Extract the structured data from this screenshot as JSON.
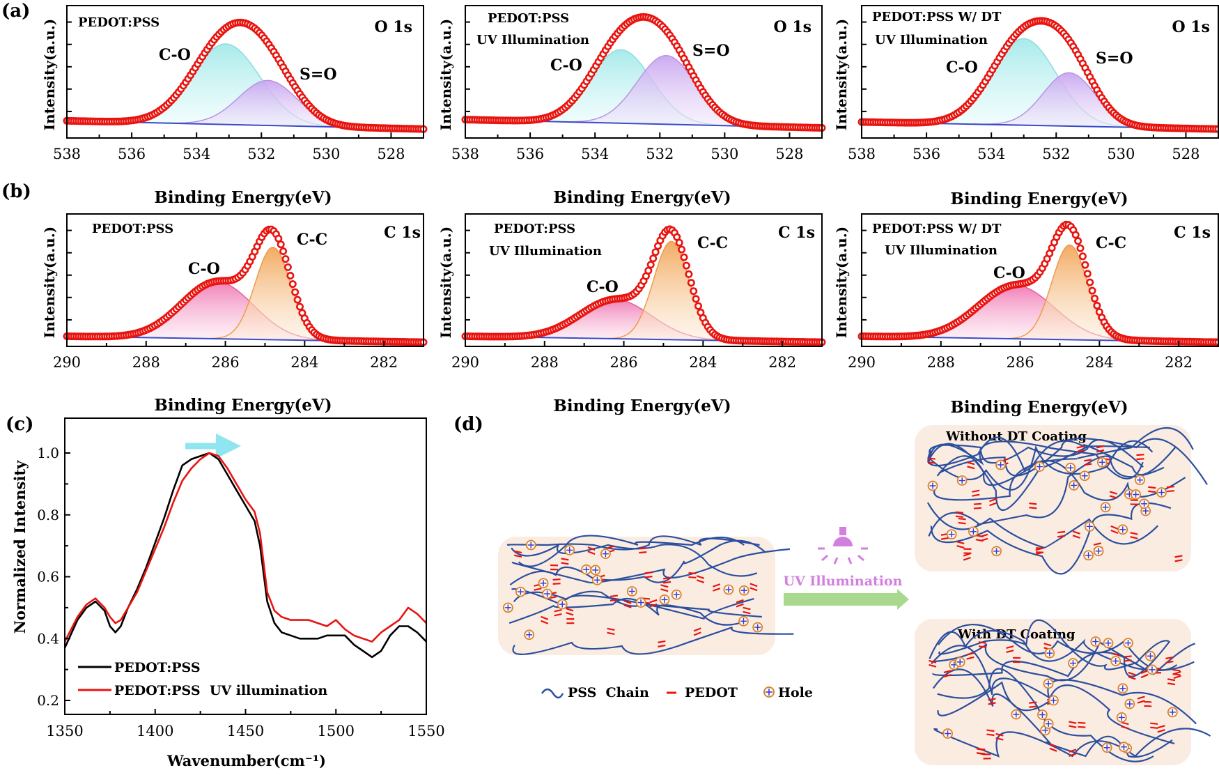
{
  "panel_labels": {
    "a": "(a)",
    "b": "(b)",
    "c": "(c)",
    "d": "(d)"
  },
  "colors": {
    "data_red": "#e8140f",
    "baseline": "#3a4bc8",
    "c_o_peak": "#9fe8e8",
    "s_o_peak": "#c9a6f0",
    "c_o_peak_c1s": "#f07ab4",
    "c_c_peak": "#f2a65a",
    "black_line": "#000000",
    "red_line": "#e8140f",
    "arrow_cyan": "#8fe6f0",
    "chain_blue": "#2a4f9e",
    "pedot_red": "#e8140f",
    "hole_orange": "#d9822b",
    "hole_blue": "#3a3ad0",
    "uv_purple": "#d27fe0",
    "green_arrow": "#a8d98f",
    "box_bg": "#fbece2"
  },
  "chart_data": [
    {
      "id": "a1",
      "type": "line",
      "title": "PEDOT:PSS",
      "corner_label": "O 1s",
      "xlabel": "Binding Energy(eV)",
      "ylabel": "Intensity(a.u.)",
      "xlim": [
        538,
        527
      ],
      "xticks": [
        538,
        536,
        534,
        532,
        530,
        528
      ],
      "ylim": [
        0,
        1
      ],
      "baseline": [
        0.11,
        0.04
      ],
      "components": [
        {
          "name": "C-O",
          "center": 533.1,
          "width": 1.05,
          "height": 0.68
        },
        {
          "name": "S=O",
          "center": 531.8,
          "width": 0.9,
          "height": 0.38
        }
      ]
    },
    {
      "id": "a2",
      "type": "line",
      "title": "PEDOT:PSS",
      "subtitle": "UV Illumination",
      "corner_label": "O 1s",
      "xlabel": "Binding Energy(eV)",
      "ylabel": "Intensity(a.u.)",
      "xlim": [
        538,
        527
      ],
      "xticks": [
        538,
        536,
        534,
        532,
        530,
        528
      ],
      "ylim": [
        0,
        1
      ],
      "baseline": [
        0.12,
        0.05
      ],
      "components": [
        {
          "name": "C-O",
          "center": 533.2,
          "width": 0.95,
          "height": 0.62
        },
        {
          "name": "S=O",
          "center": 531.8,
          "width": 0.9,
          "height": 0.58
        }
      ]
    },
    {
      "id": "a3",
      "type": "line",
      "title": "PEDOT:PSS W/ DT",
      "subtitle": "UV Illumination",
      "corner_label": "O 1s",
      "xlabel": "Binding Energy(eV)",
      "ylabel": "Intensity(a.u.)",
      "xlim": [
        538,
        527
      ],
      "xticks": [
        538,
        536,
        534,
        532,
        530,
        528
      ],
      "ylim": [
        0,
        1
      ],
      "baseline": [
        0.1,
        0.04
      ],
      "components": [
        {
          "name": "C-O",
          "center": 533.0,
          "width": 1.0,
          "height": 0.73
        },
        {
          "name": "S=O",
          "center": 531.6,
          "width": 0.8,
          "height": 0.45
        }
      ]
    },
    {
      "id": "b1",
      "type": "line",
      "title": "PEDOT:PSS",
      "corner_label": "C 1s",
      "xlabel": "Binding Energy(eV)",
      "ylabel": "Intensity(a.u.)",
      "xlim": [
        290,
        281
      ],
      "xticks": [
        290,
        288,
        286,
        284,
        282
      ],
      "ylim": [
        0,
        1
      ],
      "baseline": [
        0.05,
        0.0
      ],
      "components": [
        {
          "name": "C-O",
          "center": 286.2,
          "width": 0.9,
          "height": 0.48
        },
        {
          "name": "C-C",
          "center": 284.8,
          "width": 0.45,
          "height": 0.78
        }
      ]
    },
    {
      "id": "b2",
      "type": "line",
      "title": "PEDOT:PSS",
      "subtitle": "UV Illumination",
      "corner_label": "C 1s",
      "xlabel": "Binding Energy(eV)",
      "ylabel": "Intensity(a.u.)",
      "xlim": [
        290,
        281
      ],
      "xticks": [
        290,
        288,
        286,
        284,
        282
      ],
      "ylim": [
        0,
        1
      ],
      "baseline": [
        0.05,
        0.0
      ],
      "components": [
        {
          "name": "C-O",
          "center": 286.2,
          "width": 0.9,
          "height": 0.33
        },
        {
          "name": "C-C",
          "center": 284.8,
          "width": 0.45,
          "height": 0.83
        }
      ]
    },
    {
      "id": "b3",
      "type": "line",
      "title": "PEDOT:PSS W/ DT",
      "subtitle": "UV Illumination",
      "corner_label": "C 1s",
      "xlabel": "Binding Energy(eV)",
      "ylabel": "Intensity(a.u.)",
      "xlim": [
        290,
        281
      ],
      "xticks": [
        290,
        288,
        286,
        284,
        282
      ],
      "ylim": [
        0,
        1
      ],
      "baseline": [
        0.05,
        0.0
      ],
      "components": [
        {
          "name": "C-O",
          "center": 286.1,
          "width": 0.95,
          "height": 0.45
        },
        {
          "name": "C-C",
          "center": 284.75,
          "width": 0.45,
          "height": 0.8
        }
      ]
    },
    {
      "id": "c",
      "type": "line",
      "xlabel": "Wavenumber(cm⁻¹)",
      "ylabel": "Normalized Intensity",
      "xlim": [
        1350,
        1550
      ],
      "ylim": [
        0.2,
        1.1
      ],
      "xticks": [
        1350,
        1400,
        1450,
        1500,
        1550
      ],
      "yticks": [
        0.2,
        0.4,
        0.6,
        0.8,
        1.0
      ],
      "series": [
        {
          "name": "PEDOT:PSS",
          "x": [
            1350,
            1357,
            1362,
            1367,
            1372,
            1375,
            1378,
            1381,
            1385,
            1390,
            1395,
            1400,
            1405,
            1410,
            1415,
            1420,
            1425,
            1430,
            1435,
            1440,
            1445,
            1450,
            1455,
            1458,
            1462,
            1466,
            1470,
            1475,
            1480,
            1485,
            1490,
            1495,
            1500,
            1505,
            1510,
            1515,
            1520,
            1525,
            1530,
            1535,
            1540,
            1545,
            1550
          ],
          "y": [
            0.37,
            0.46,
            0.5,
            0.52,
            0.49,
            0.44,
            0.42,
            0.44,
            0.5,
            0.56,
            0.63,
            0.71,
            0.79,
            0.88,
            0.96,
            0.98,
            0.99,
            1.0,
            0.98,
            0.93,
            0.88,
            0.83,
            0.78,
            0.7,
            0.52,
            0.45,
            0.42,
            0.41,
            0.4,
            0.4,
            0.4,
            0.41,
            0.41,
            0.41,
            0.38,
            0.36,
            0.34,
            0.36,
            0.41,
            0.44,
            0.44,
            0.42,
            0.39
          ]
        },
        {
          "name": "PEDOT:PSS  UV illumination",
          "x": [
            1350,
            1357,
            1362,
            1367,
            1372,
            1375,
            1378,
            1381,
            1385,
            1390,
            1395,
            1400,
            1405,
            1410,
            1415,
            1420,
            1425,
            1430,
            1435,
            1440,
            1445,
            1450,
            1455,
            1458,
            1462,
            1466,
            1470,
            1475,
            1480,
            1485,
            1490,
            1495,
            1500,
            1505,
            1510,
            1515,
            1520,
            1525,
            1530,
            1535,
            1540,
            1545,
            1550
          ],
          "y": [
            0.39,
            0.47,
            0.51,
            0.53,
            0.5,
            0.47,
            0.45,
            0.46,
            0.5,
            0.55,
            0.62,
            0.69,
            0.76,
            0.84,
            0.91,
            0.95,
            0.98,
            1.0,
            0.99,
            0.95,
            0.9,
            0.85,
            0.81,
            0.74,
            0.55,
            0.49,
            0.47,
            0.46,
            0.46,
            0.46,
            0.45,
            0.44,
            0.46,
            0.43,
            0.41,
            0.4,
            0.39,
            0.42,
            0.44,
            0.46,
            0.5,
            0.48,
            0.45
          ]
        }
      ]
    }
  ],
  "panel_a_peak_labels": [
    [
      "C-O",
      "S=O"
    ],
    [
      "C-O",
      "S=O"
    ],
    [
      "C-O",
      "S=O"
    ]
  ],
  "panel_b_peak_labels": [
    [
      "C-O",
      "C-C"
    ],
    [
      "C-O",
      "C-C"
    ],
    [
      "C-O",
      "C-C"
    ]
  ],
  "schematic": {
    "uv_label": "UV Illumination",
    "without_dt": "Without DT Coating",
    "with_dt": "With DT Coating",
    "legend": {
      "chain": "PSS  Chain",
      "pedot": "PEDOT",
      "hole": "Hole"
    }
  }
}
